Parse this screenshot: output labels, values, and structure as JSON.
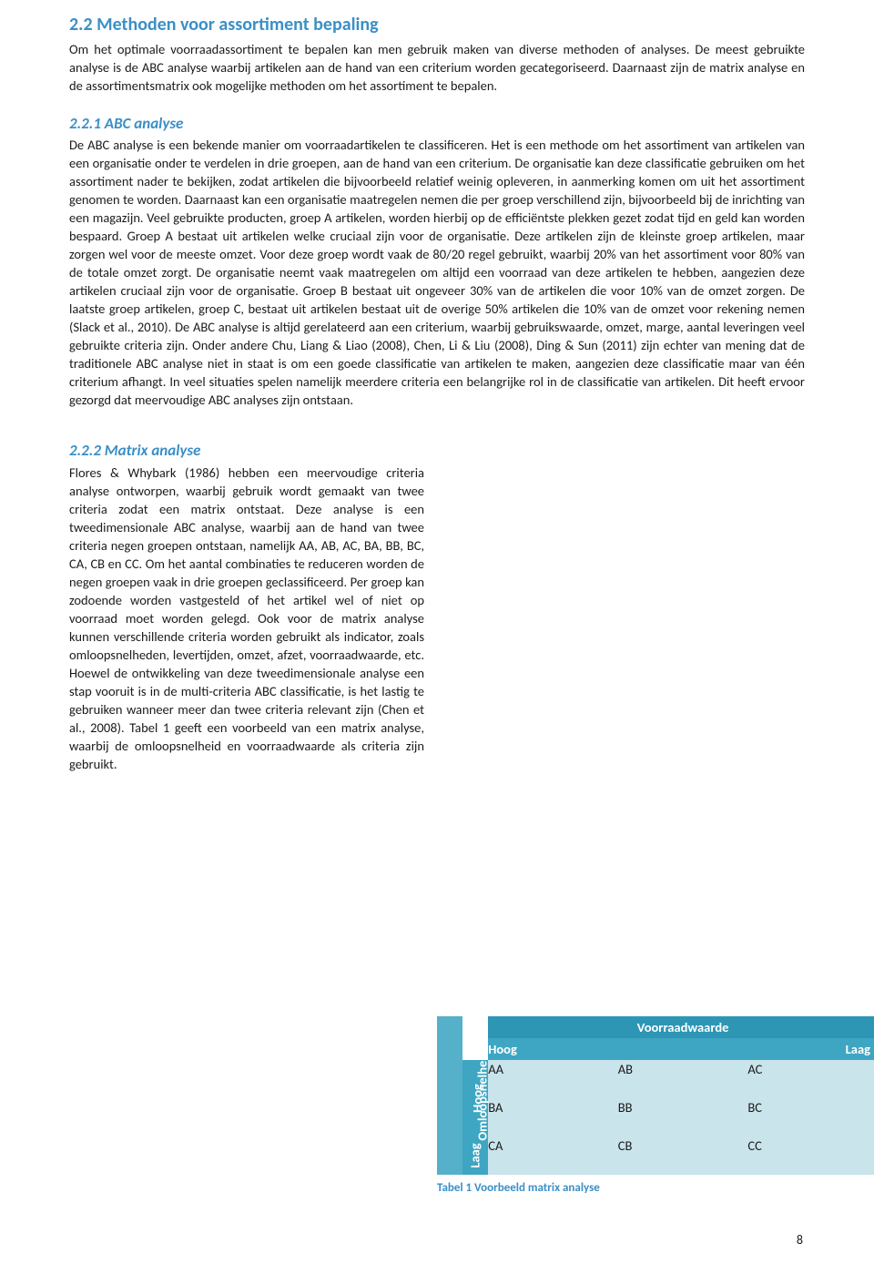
{
  "section": {
    "title": "2.2 Methoden voor assortiment bepaling",
    "intro": "Om het optimale voorraadassortiment te bepalen kan men gebruik maken van diverse methoden of analyses. De meest gebruikte analyse is de ABC analyse waarbij artikelen aan de hand van een criterium worden gecategoriseerd. Daarnaast zijn de matrix analyse en de assortimentsmatrix ook mogelijke methoden om het assortiment te bepalen."
  },
  "sub1": {
    "title": "2.2.1 ABC analyse",
    "body": "De ABC analyse is een bekende manier om voorraadartikelen te classificeren. Het is een methode om het assortiment van artikelen van een organisatie onder te verdelen in drie groepen, aan de hand van een criterium. De organisatie kan deze classificatie gebruiken om het assortiment nader te bekijken, zodat artikelen die bijvoorbeeld relatief weinig opleveren, in aanmerking komen om uit het assortiment genomen te worden. Daarnaast kan een organisatie maatregelen nemen die per groep verschillend zijn, bijvoorbeeld bij de inrichting van een magazijn. Veel gebruikte producten, groep A artikelen, worden hierbij op de efficiëntste plekken gezet zodat tijd en geld kan worden bespaard. Groep A bestaat uit artikelen welke cruciaal zijn voor de organisatie. Deze artikelen zijn de kleinste groep artikelen, maar zorgen wel voor de meeste omzet. Voor deze groep wordt vaak de 80/20 regel gebruikt, waarbij 20% van het assortiment voor 80% van de totale omzet zorgt. De organisatie neemt vaak maatregelen om altijd een voorraad van deze artikelen te hebben, aangezien deze artikelen cruciaal zijn voor de organisatie. Groep B bestaat uit ongeveer 30% van de artikelen die voor 10% van de omzet zorgen. De laatste groep artikelen, groep C, bestaat uit artikelen bestaat uit de overige 50% artikelen die 10% van de omzet voor rekening nemen (Slack et al., 2010). De ABC analyse is altijd gerelateerd aan een criterium, waarbij gebruikswaarde, omzet, marge, aantal leveringen veel gebruikte criteria zijn. Onder andere Chu, Liang & Liao (2008), Chen, Li & Liu (2008), Ding & Sun (2011) zijn echter van mening dat de traditionele ABC analyse niet in staat is om een goede classificatie van artikelen te maken, aangezien deze classificatie maar van één criterium afhangt. In veel situaties spelen namelijk meerdere criteria een belangrijke rol in de classificatie van artikelen. Dit heeft ervoor gezorgd dat meervoudige ABC analyses zijn ontstaan."
  },
  "sub2": {
    "title": "2.2.2 Matrix analyse",
    "body": "Flores & Whybark (1986) hebben een meervoudige criteria analyse ontworpen, waarbij gebruik wordt gemaakt van twee criteria zodat een matrix ontstaat. Deze analyse is een tweedimensionale ABC analyse, waarbij aan de hand van twee criteria negen groepen ontstaan, namelijk AA, AB, AC, BA, BB, BC, CA, CB en CC. Om het aantal combinaties te reduceren worden de negen groepen vaak in drie groepen geclassificeerd. Per groep kan zodoende worden vastgesteld of het artikel wel of niet op voorraad moet worden gelegd. Ook voor de matrix analyse kunnen verschillende criteria worden gebruikt als indicator, zoals omloopsnelheden, levertijden, omzet, afzet, voorraadwaarde, etc. Hoewel de ontwikkeling van deze tweedimensionale analyse een stap vooruit is in de multi-criteria ABC classificatie, is het lastig te gebruiken wanneer meer dan twee criteria relevant zijn (Chen et al., 2008). Tabel 1 geeft een voorbeeld van een matrix analyse, waarbij de omloopsnelheid en voorraadwaarde als criteria zijn gebruikt."
  },
  "matrix": {
    "row_axis_label": "Omloopsnelheid",
    "col_axis_label": "Voorraadwaarde",
    "col_sub_left": "Hoog",
    "col_sub_right": "Laag",
    "row_sub_top": "Hoog",
    "row_sub_bottom": "Laag",
    "cells": {
      "r0c0": "AA",
      "r0c1": "AB",
      "r0c2": "AC",
      "r1c0": "BA",
      "r1c1": "BB",
      "r1c2": "BC",
      "r2c0": "CA",
      "r2c1": "CB",
      "r2c2": "CC"
    },
    "caption": "Tabel 1 Voorbeeld matrix analyse",
    "colors": {
      "header_top_bg": "#2d96b5",
      "header_sub_bg": "#3ea6c2",
      "vlabel_outer_bg": "#55b0c9",
      "cell_bg": "#c9e4eb",
      "text_white": "#ffffff"
    }
  },
  "page_number": "8"
}
